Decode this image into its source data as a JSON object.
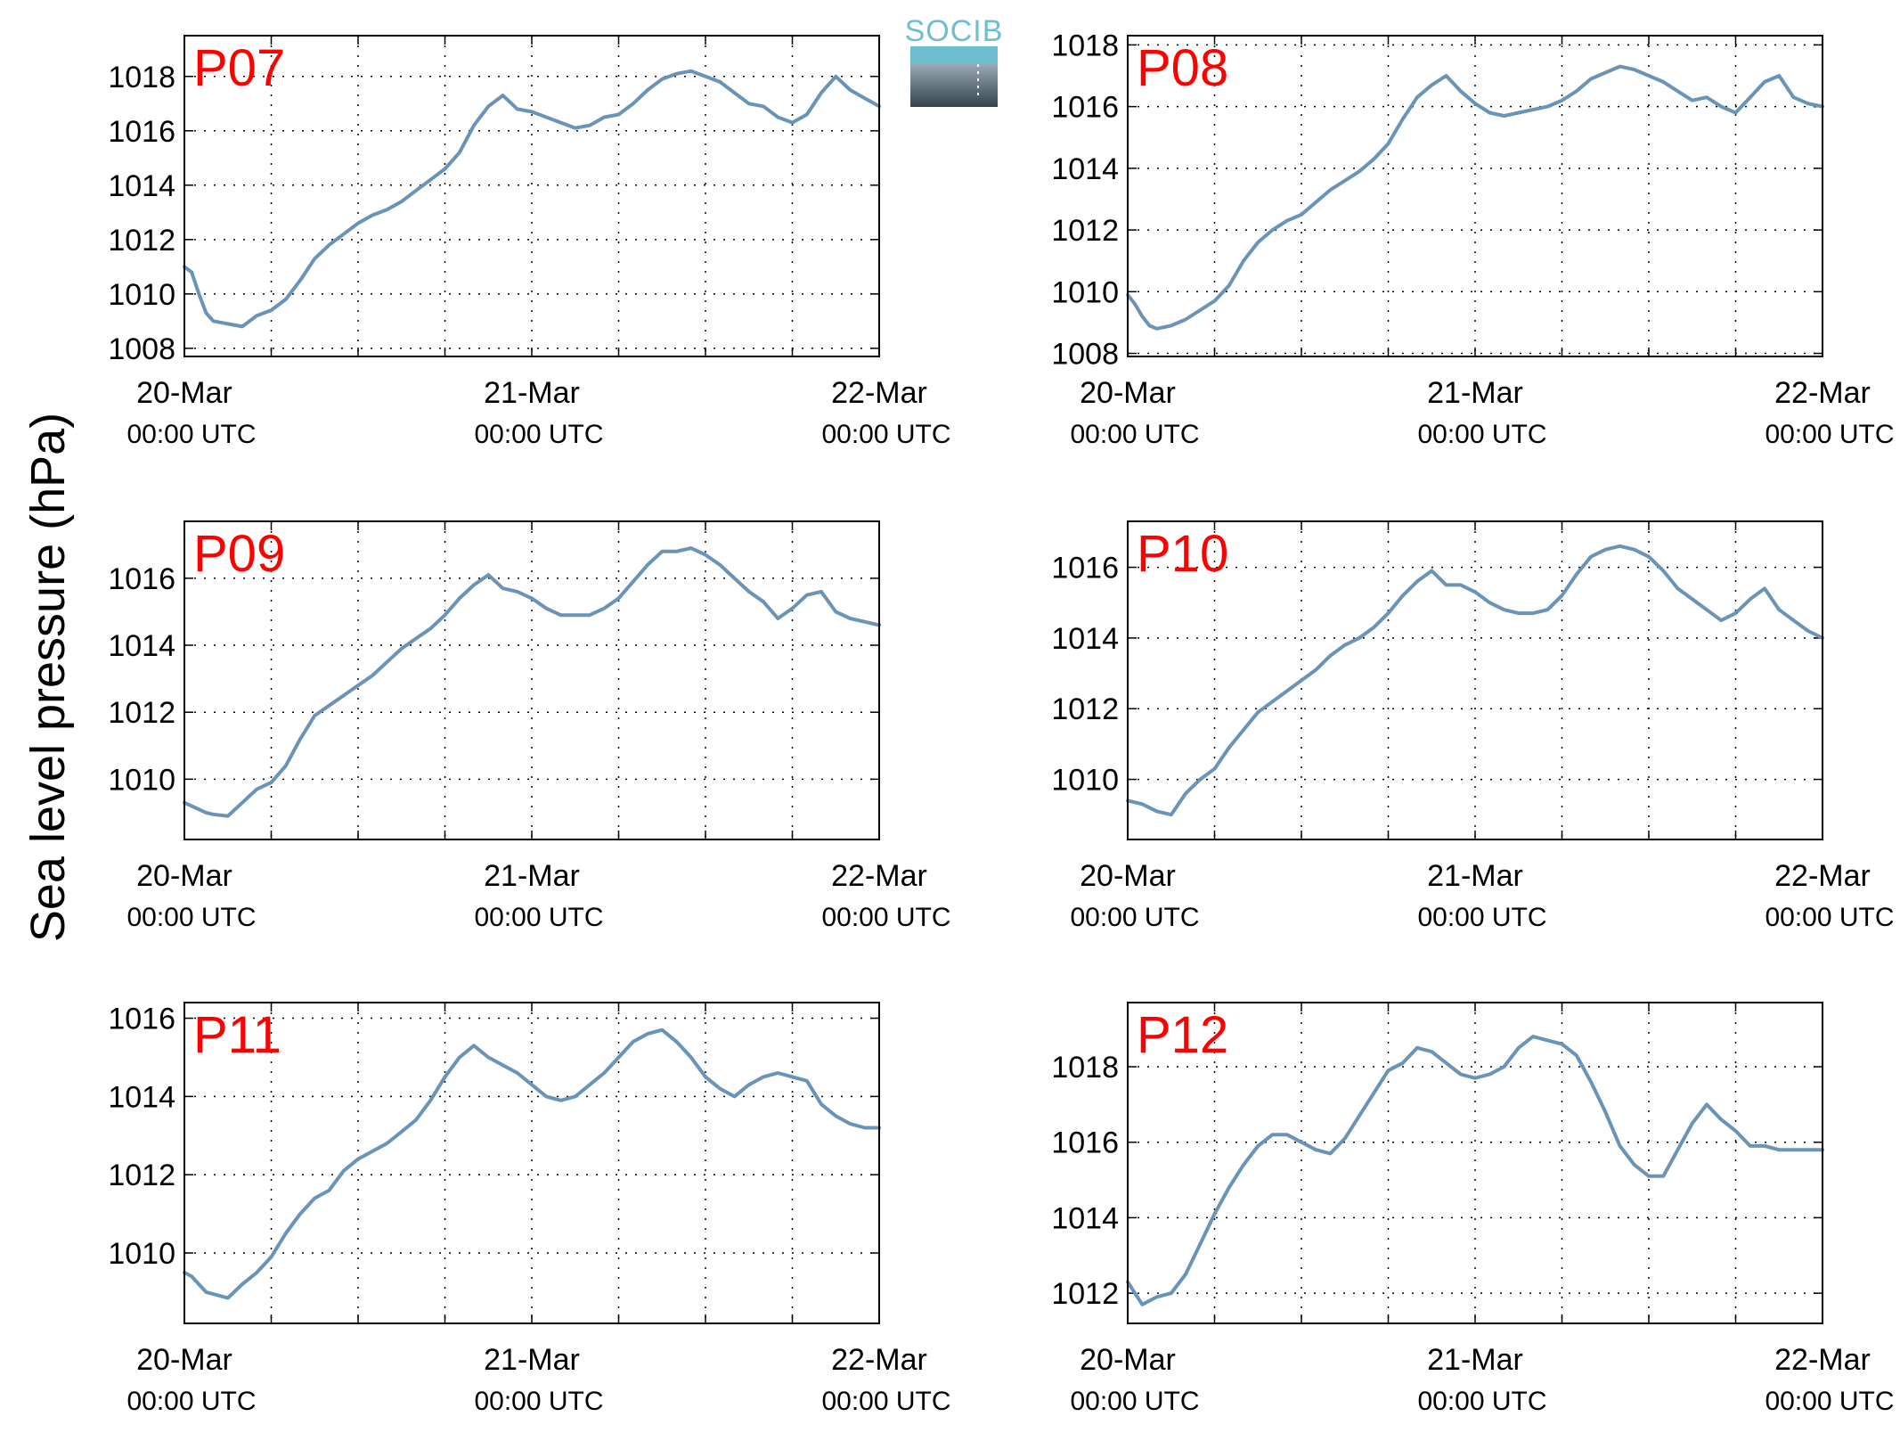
{
  "figure": {
    "ylabel": "Sea level pressure (hPa)",
    "logo_text": "SOCIB",
    "line_color": "#6a93b8",
    "label_color": "#ff0000",
    "x_ticks": [
      {
        "date": "20-Mar",
        "time": "00:00 UTC"
      },
      {
        "date": "21-Mar",
        "time": "00:00 UTC"
      },
      {
        "date": "22-Mar",
        "time": "00:00 UTC"
      }
    ]
  },
  "chart_data": [
    {
      "type": "line",
      "name": "P07",
      "xlim": [
        0,
        48
      ],
      "ylim": [
        1007.7,
        1019.5
      ],
      "yticks": [
        "1008",
        "1010",
        "1012",
        "1014",
        "1016",
        "1018"
      ],
      "grid": true,
      "x": [
        0,
        0.5,
        1,
        1.5,
        2,
        3,
        4,
        5,
        6,
        7,
        8,
        9,
        10,
        11,
        12,
        13,
        14,
        15,
        16,
        17,
        18,
        19,
        20,
        21,
        22,
        23,
        24,
        25,
        26,
        27,
        28,
        29,
        30,
        31,
        32,
        33,
        34,
        35,
        36,
        37,
        38,
        39,
        40,
        41,
        42,
        43,
        44,
        45,
        46,
        47,
        48
      ],
      "y": [
        1011,
        1010.8,
        1010,
        1009.3,
        1009,
        1008.9,
        1008.8,
        1009.2,
        1009.4,
        1009.8,
        1010.5,
        1011.3,
        1011.8,
        1012.2,
        1012.6,
        1012.9,
        1013.1,
        1013.4,
        1013.8,
        1014.2,
        1014.6,
        1015.2,
        1016.2,
        1016.9,
        1017.3,
        1016.8,
        1016.7,
        1016.5,
        1016.3,
        1016.1,
        1016.2,
        1016.5,
        1016.6,
        1017.0,
        1017.5,
        1017.9,
        1018.1,
        1018.2,
        1018.0,
        1017.8,
        1017.4,
        1017.0,
        1016.9,
        1016.5,
        1016.3,
        1016.6,
        1017.4,
        1018.0,
        1017.5,
        1017.2,
        1016.9
      ]
    },
    {
      "type": "line",
      "name": "P08",
      "xlim": [
        0,
        48
      ],
      "ylim": [
        1007.9,
        1018.3
      ],
      "yticks": [
        "1008",
        "1010",
        "1012",
        "1014",
        "1016",
        "1018"
      ],
      "grid": true,
      "x": [
        0,
        0.5,
        1,
        1.5,
        2,
        3,
        4,
        5,
        6,
        7,
        8,
        9,
        10,
        11,
        12,
        13,
        14,
        15,
        16,
        17,
        18,
        19,
        20,
        21,
        22,
        23,
        24,
        25,
        26,
        27,
        28,
        29,
        30,
        31,
        32,
        33,
        34,
        35,
        36,
        37,
        38,
        39,
        40,
        41,
        42,
        43,
        44,
        45,
        46,
        47,
        48
      ],
      "y": [
        1009.9,
        1009.6,
        1009.2,
        1008.9,
        1008.8,
        1008.9,
        1009.1,
        1009.4,
        1009.7,
        1010.2,
        1011.0,
        1011.6,
        1012.0,
        1012.3,
        1012.5,
        1012.9,
        1013.3,
        1013.6,
        1013.9,
        1014.3,
        1014.8,
        1015.6,
        1016.3,
        1016.7,
        1017.0,
        1016.5,
        1016.1,
        1015.8,
        1015.7,
        1015.8,
        1015.9,
        1016.0,
        1016.2,
        1016.5,
        1016.9,
        1017.1,
        1017.3,
        1017.2,
        1017.0,
        1016.8,
        1016.5,
        1016.2,
        1016.3,
        1016.0,
        1015.8,
        1016.3,
        1016.8,
        1017.0,
        1016.3,
        1016.1,
        1016.0
      ]
    },
    {
      "type": "line",
      "name": "P09",
      "xlim": [
        0,
        48
      ],
      "ylim": [
        1008.2,
        1017.7
      ],
      "yticks": [
        "1010",
        "1012",
        "1014",
        "1016"
      ],
      "grid": true,
      "x": [
        0,
        0.5,
        1,
        1.5,
        2,
        3,
        4,
        5,
        6,
        7,
        8,
        9,
        10,
        11,
        12,
        13,
        14,
        15,
        16,
        17,
        18,
        19,
        20,
        21,
        22,
        23,
        24,
        25,
        26,
        27,
        28,
        29,
        30,
        31,
        32,
        33,
        34,
        35,
        36,
        37,
        38,
        39,
        40,
        41,
        42,
        43,
        44,
        45,
        46,
        47,
        48
      ],
      "y": [
        1009.3,
        1009.2,
        1009.1,
        1009.0,
        1008.95,
        1008.9,
        1009.3,
        1009.7,
        1009.9,
        1010.4,
        1011.2,
        1011.9,
        1012.2,
        1012.5,
        1012.8,
        1013.1,
        1013.5,
        1013.9,
        1014.2,
        1014.5,
        1014.9,
        1015.4,
        1015.8,
        1016.1,
        1015.7,
        1015.6,
        1015.4,
        1015.1,
        1014.9,
        1014.9,
        1014.9,
        1015.1,
        1015.4,
        1015.9,
        1016.4,
        1016.8,
        1016.8,
        1016.9,
        1016.7,
        1016.4,
        1016.0,
        1015.6,
        1015.3,
        1014.8,
        1015.1,
        1015.5,
        1015.6,
        1015.0,
        1014.8,
        1014.7,
        1014.6
      ]
    },
    {
      "type": "line",
      "name": "P10",
      "xlim": [
        0,
        48
      ],
      "ylim": [
        1008.3,
        1017.3
      ],
      "yticks": [
        "1010",
        "1012",
        "1014",
        "1016"
      ],
      "grid": true,
      "x": [
        0,
        0.5,
        1,
        1.5,
        2,
        3,
        4,
        5,
        6,
        7,
        8,
        9,
        10,
        11,
        12,
        13,
        14,
        15,
        16,
        17,
        18,
        19,
        20,
        21,
        22,
        23,
        24,
        25,
        26,
        27,
        28,
        29,
        30,
        31,
        32,
        33,
        34,
        35,
        36,
        37,
        38,
        39,
        40,
        41,
        42,
        43,
        44,
        45,
        46,
        47,
        48
      ],
      "y": [
        1009.4,
        1009.35,
        1009.3,
        1009.2,
        1009.1,
        1009.0,
        1009.6,
        1010.0,
        1010.3,
        1010.9,
        1011.4,
        1011.9,
        1012.2,
        1012.5,
        1012.8,
        1013.1,
        1013.5,
        1013.8,
        1014.0,
        1014.3,
        1014.7,
        1015.2,
        1015.6,
        1015.9,
        1015.5,
        1015.5,
        1015.3,
        1015.0,
        1014.8,
        1014.7,
        1014.7,
        1014.8,
        1015.2,
        1015.8,
        1016.3,
        1016.5,
        1016.6,
        1016.5,
        1016.3,
        1015.9,
        1015.4,
        1015.1,
        1014.8,
        1014.5,
        1014.7,
        1015.1,
        1015.4,
        1014.8,
        1014.5,
        1014.2,
        1014.0
      ]
    },
    {
      "type": "line",
      "name": "P11",
      "xlim": [
        0,
        48
      ],
      "ylim": [
        1008.2,
        1016.4
      ],
      "yticks": [
        "1010",
        "1012",
        "1014",
        "1016"
      ],
      "grid": true,
      "x": [
        0,
        0.5,
        1,
        1.5,
        2,
        3,
        4,
        5,
        6,
        7,
        8,
        9,
        10,
        11,
        12,
        13,
        14,
        15,
        16,
        17,
        18,
        19,
        20,
        21,
        22,
        23,
        24,
        25,
        26,
        27,
        28,
        29,
        30,
        31,
        32,
        33,
        34,
        35,
        36,
        37,
        38,
        39,
        40,
        41,
        42,
        43,
        44,
        45,
        46,
        47,
        48
      ],
      "y": [
        1009.5,
        1009.4,
        1009.2,
        1009.0,
        1008.95,
        1008.85,
        1009.2,
        1009.5,
        1009.9,
        1010.5,
        1011.0,
        1011.4,
        1011.6,
        1012.1,
        1012.4,
        1012.6,
        1012.8,
        1013.1,
        1013.4,
        1013.9,
        1014.5,
        1015.0,
        1015.3,
        1015.0,
        1014.8,
        1014.6,
        1014.3,
        1014.0,
        1013.9,
        1014.0,
        1014.3,
        1014.6,
        1015.0,
        1015.4,
        1015.6,
        1015.7,
        1015.4,
        1015.0,
        1014.5,
        1014.2,
        1014.0,
        1014.3,
        1014.5,
        1014.6,
        1014.5,
        1014.4,
        1013.8,
        1013.5,
        1013.3,
        1013.2,
        1013.2
      ]
    },
    {
      "type": "line",
      "name": "P12",
      "xlim": [
        0,
        48
      ],
      "ylim": [
        1011.2,
        1019.7
      ],
      "yticks": [
        "1012",
        "1014",
        "1016",
        "1018"
      ],
      "grid": true,
      "x": [
        0,
        0.5,
        1,
        1.5,
        2,
        3,
        4,
        5,
        6,
        7,
        8,
        9,
        10,
        11,
        12,
        13,
        14,
        15,
        16,
        17,
        18,
        19,
        20,
        21,
        22,
        23,
        24,
        25,
        26,
        27,
        28,
        29,
        30,
        31,
        32,
        33,
        34,
        35,
        36,
        37,
        38,
        39,
        40,
        41,
        42,
        43,
        44,
        45,
        46,
        47,
        48
      ],
      "y": [
        1012.3,
        1012.0,
        1011.7,
        1011.8,
        1011.9,
        1012.0,
        1012.5,
        1013.3,
        1014.1,
        1014.8,
        1015.4,
        1015.9,
        1016.2,
        1016.2,
        1016.0,
        1015.8,
        1015.7,
        1016.1,
        1016.7,
        1017.3,
        1017.9,
        1018.1,
        1018.5,
        1018.4,
        1018.1,
        1017.8,
        1017.7,
        1017.8,
        1018.0,
        1018.5,
        1018.8,
        1018.7,
        1018.6,
        1018.3,
        1017.6,
        1016.8,
        1015.9,
        1015.4,
        1015.1,
        1015.1,
        1015.8,
        1016.5,
        1017.0,
        1016.6,
        1016.3,
        1015.9,
        1015.9,
        1015.8,
        1015.8,
        1015.8,
        1015.8
      ]
    }
  ]
}
